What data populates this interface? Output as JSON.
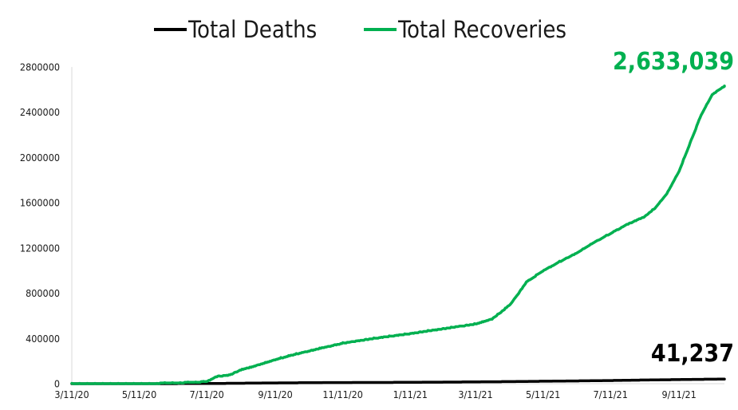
{
  "chart_data": {
    "type": "line",
    "title": "",
    "xlabel": "",
    "ylabel": "",
    "ylim": [
      0,
      2800000
    ],
    "yticks": [
      "0",
      "400000",
      "800000",
      "1200000",
      "1600000",
      "2000000",
      "2400000",
      "2800000"
    ],
    "xticks": [
      "3/11/20",
      "5/11/20",
      "7/11/20",
      "9/11/20",
      "11/11/20",
      "1/11/21",
      "3/11/21",
      "5/11/21",
      "7/11/21",
      "9/11/21"
    ],
    "legend": "top-center",
    "grid": false,
    "series": [
      {
        "name": "Total Deaths",
        "color": "#000000",
        "end_label": "41,237",
        "points": [
          [
            "2020-03-11",
            0
          ],
          [
            "2020-05-11",
            400
          ],
          [
            "2020-06-15",
            1200
          ],
          [
            "2020-07-11",
            2500
          ],
          [
            "2020-08-11",
            4500
          ],
          [
            "2020-09-11",
            7000
          ],
          [
            "2020-10-11",
            9000
          ],
          [
            "2020-11-11",
            10500
          ],
          [
            "2020-12-11",
            11500
          ],
          [
            "2021-01-11",
            12500
          ],
          [
            "2021-02-11",
            14500
          ],
          [
            "2021-03-11",
            16500
          ],
          [
            "2021-04-11",
            18500
          ],
          [
            "2021-05-11",
            22000
          ],
          [
            "2021-06-11",
            25000
          ],
          [
            "2021-07-11",
            28500
          ],
          [
            "2021-08-11",
            33000
          ],
          [
            "2021-09-11",
            37000
          ],
          [
            "2021-10-11",
            40500
          ],
          [
            "2021-10-22",
            41237
          ]
        ]
      },
      {
        "name": "Total Recoveries",
        "color": "#00b050",
        "end_label": "2,633,039",
        "points": [
          [
            "2020-03-11",
            0
          ],
          [
            "2020-05-11",
            3000
          ],
          [
            "2020-06-11",
            8000
          ],
          [
            "2020-07-11",
            20000
          ],
          [
            "2020-07-20",
            65000
          ],
          [
            "2020-08-01",
            80000
          ],
          [
            "2020-08-11",
            125000
          ],
          [
            "2020-08-26",
            165000
          ],
          [
            "2020-09-11",
            215000
          ],
          [
            "2020-09-26",
            255000
          ],
          [
            "2020-10-11",
            290000
          ],
          [
            "2020-10-26",
            325000
          ],
          [
            "2020-11-11",
            360000
          ],
          [
            "2020-12-11",
            405000
          ],
          [
            "2021-01-11",
            445000
          ],
          [
            "2021-02-11",
            490000
          ],
          [
            "2021-03-11",
            530000
          ],
          [
            "2021-03-26",
            575000
          ],
          [
            "2021-04-05",
            650000
          ],
          [
            "2021-04-12",
            710000
          ],
          [
            "2021-04-18",
            790000
          ],
          [
            "2021-04-26",
            900000
          ],
          [
            "2021-05-11",
            1000000
          ],
          [
            "2021-05-26",
            1080000
          ],
          [
            "2021-06-11",
            1160000
          ],
          [
            "2021-06-26",
            1250000
          ],
          [
            "2021-07-11",
            1330000
          ],
          [
            "2021-07-26",
            1410000
          ],
          [
            "2021-08-11",
            1480000
          ],
          [
            "2021-08-21",
            1560000
          ],
          [
            "2021-08-31",
            1680000
          ],
          [
            "2021-09-11",
            1880000
          ],
          [
            "2021-09-21",
            2130000
          ],
          [
            "2021-10-01",
            2380000
          ],
          [
            "2021-10-11",
            2560000
          ],
          [
            "2021-10-22",
            2633039
          ]
        ]
      }
    ]
  }
}
